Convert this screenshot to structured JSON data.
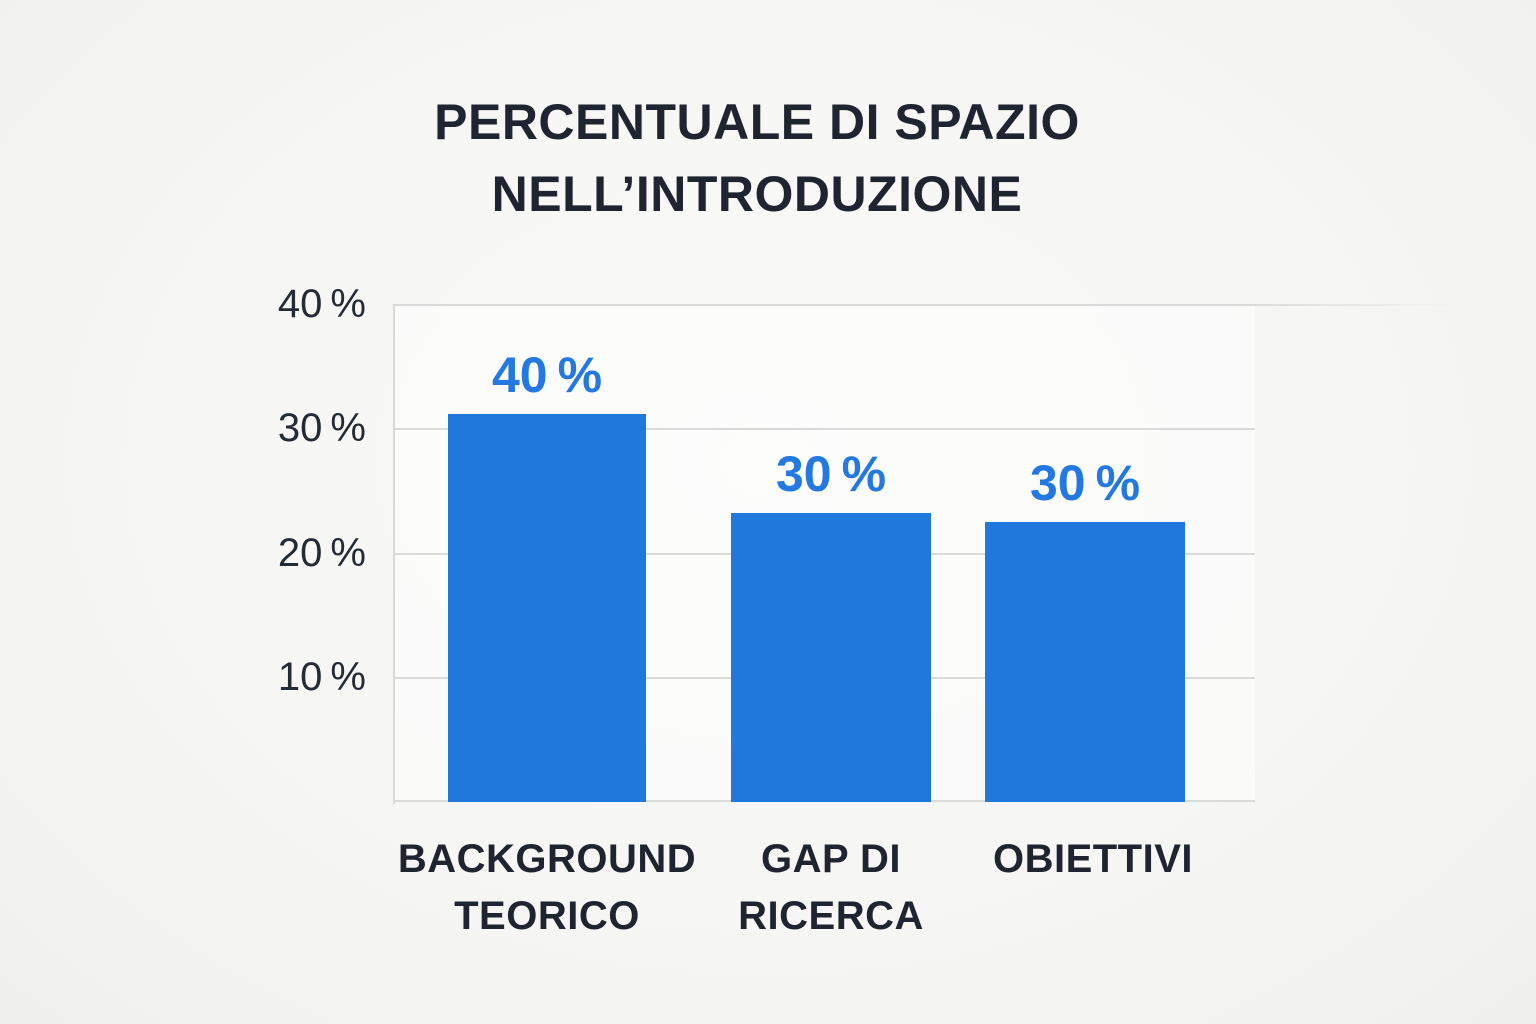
{
  "chart_data": {
    "type": "bar",
    "title": "PERCENTUALE DI SPAZIO NELL’INTRODUZIONE",
    "title_lines": [
      "PERCENTUALE DI SPAZIO",
      "NELL’INTRODUZIONE"
    ],
    "categories": [
      "BACKGROUND TEORICO",
      "GAP DI RICERCA",
      "OBIETTIVI"
    ],
    "values": [
      40,
      30,
      30
    ],
    "xlabel": "",
    "ylabel": "",
    "ylim": [
      0,
      40
    ],
    "y_unit": "%",
    "grid": true,
    "legend": false,
    "y_axis": {
      "ticks": [
        "40 %",
        "30 %",
        "20 %",
        "10 %"
      ],
      "tick_values": [
        40,
        30,
        20,
        10
      ]
    },
    "bars": [
      {
        "label_lines": [
          "BACKGROUND",
          "TEORICO"
        ],
        "value": 40,
        "value_label": "40 %",
        "rendered_height_percent": 31.2
      },
      {
        "label_lines": [
          "GAP DI",
          "RICERCA"
        ],
        "value": 30,
        "value_label": "30 %",
        "rendered_height_percent": 23.2
      },
      {
        "label_lines": [
          "OBIETTIVI"
        ],
        "value": 30,
        "value_label": "30 %",
        "rendered_height_percent": 22.5
      }
    ],
    "colors": {
      "bar": "#2178dc",
      "value_label": "#2379e1",
      "text": "#1e2531",
      "grid": "#d9dbdb",
      "background": "#f7f7f5"
    }
  }
}
